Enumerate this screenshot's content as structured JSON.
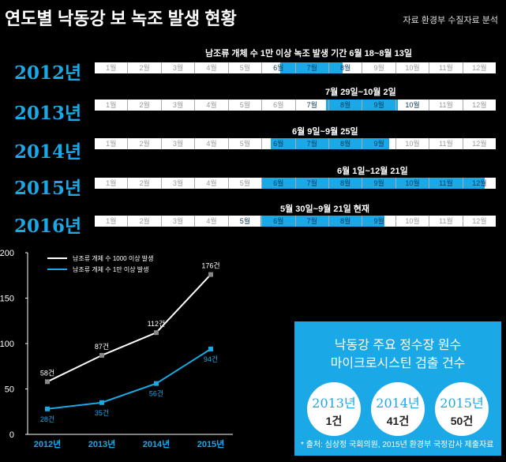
{
  "header": {
    "title": "연도별 낙동강 보 녹조 발생 현황",
    "source": "자료 환경부 수질자료 분석"
  },
  "timeline": {
    "months": [
      "1월",
      "2월",
      "3월",
      "4월",
      "5월",
      "6월",
      "7월",
      "8월",
      "9월",
      "10월",
      "11월",
      "12월"
    ],
    "rows": [
      {
        "year": "2012년",
        "period": "남조류 개체 수 1만 이상 녹조 발생 기간 6월 18~8월 13일",
        "start_month": 5.55,
        "end_month": 7.42
      },
      {
        "year": "2013년",
        "period": "7월 29일~10월 2일",
        "start_month": 6.93,
        "end_month": 9.06
      },
      {
        "year": "2014년",
        "period": "6월 9일~9월 25일",
        "start_month": 5.27,
        "end_month": 8.8
      },
      {
        "year": "2015년",
        "period": "6월 1일~12월 21일",
        "start_month": 5.0,
        "end_month": 11.68
      },
      {
        "year": "2016년",
        "period": "5월 30일~9월 21일 현재",
        "start_month": 4.95,
        "end_month": 8.67
      }
    ]
  },
  "chart_data": {
    "type": "line",
    "x": [
      "2012년",
      "2013년",
      "2014년",
      "2015년"
    ],
    "ylim": [
      0,
      200
    ],
    "yticks": [
      "0",
      "50",
      "100",
      "150",
      "200"
    ],
    "series": [
      {
        "name": "남조류 개체 수 1000 이상 발생",
        "values": [
          58,
          87,
          112,
          176
        ],
        "labels": [
          "58건",
          "87건",
          "112건",
          "176건"
        ],
        "color": "#ffffff"
      },
      {
        "name": "남조류 개체 수 1만 이상 발생",
        "values": [
          28,
          35,
          56,
          94
        ],
        "labels": [
          "28건",
          "35건",
          "56건",
          "94건"
        ],
        "color": "#1aa9e6"
      }
    ]
  },
  "info_box": {
    "title_line1": "낙동강 주요 정수장 원수",
    "title_line2": "마이크로시스틴 검출 건수",
    "items": [
      {
        "year": "2013년",
        "count": "1건"
      },
      {
        "year": "2014년",
        "count": "41건"
      },
      {
        "year": "2015년",
        "count": "50건"
      }
    ],
    "footnote": "* 출처: 심상정 국회의원, 2015년 환경부 국정감사 제출자료",
    "bg_color": "#1aa9e6"
  }
}
